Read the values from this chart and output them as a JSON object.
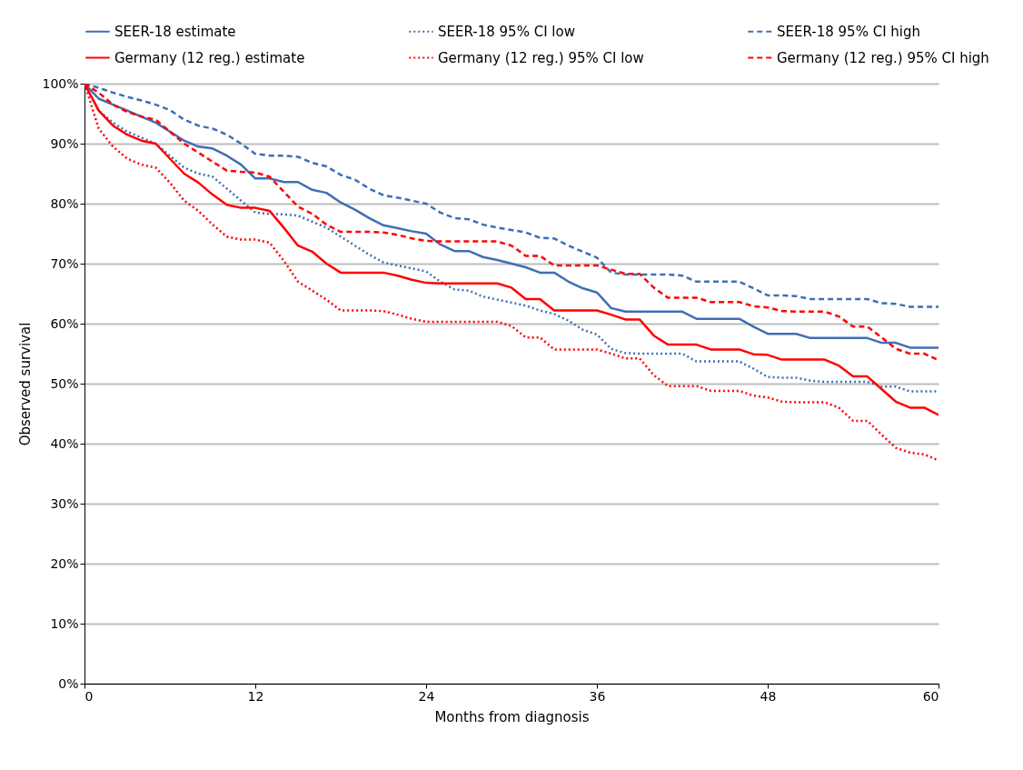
{
  "chart_data": {
    "type": "line",
    "xlabel": "Months from diagnosis",
    "ylabel": "Observed survival",
    "xlim": [
      0,
      60
    ],
    "xticks": [
      0,
      12,
      24,
      36,
      48,
      60
    ],
    "ylim": [
      0,
      100
    ],
    "yticks": [
      {
        "value": 0,
        "label": "0%"
      },
      {
        "value": 10,
        "label": "10%"
      },
      {
        "value": 20,
        "label": "20%"
      },
      {
        "value": 30,
        "label": "30%"
      },
      {
        "value": 40,
        "label": "40%"
      },
      {
        "value": 50,
        "label": "50%"
      },
      {
        "value": 60,
        "label": "60%"
      },
      {
        "value": 70,
        "label": "70%"
      },
      {
        "value": 80,
        "label": "80%"
      },
      {
        "value": 90,
        "label": "90%"
      },
      {
        "value": 100,
        "label": "100%"
      }
    ],
    "grid": "y",
    "legend": "top",
    "x": [
      0,
      1,
      2,
      3,
      4,
      5,
      6,
      7,
      8,
      9,
      10,
      11,
      12,
      13,
      14,
      15,
      16,
      17,
      18,
      19,
      20,
      21,
      22,
      23,
      24,
      25,
      26,
      27,
      28,
      29,
      30,
      31,
      32,
      33,
      34,
      35,
      36,
      37,
      38,
      39,
      40,
      41,
      42,
      43,
      44,
      45,
      46,
      47,
      48,
      49,
      50,
      51,
      52,
      53,
      54,
      55,
      56,
      57,
      58,
      59,
      60
    ],
    "series": [
      {
        "name": "SEER-18 estimate",
        "color": "#3f6fb5",
        "line_style": "solid",
        "values": [
          100,
          97.5,
          96.5,
          95.5,
          94.5,
          93.5,
          92,
          90.5,
          89.5,
          89.2,
          88,
          86.5,
          84.2,
          84.2,
          83.6,
          83.6,
          82.3,
          81.8,
          80.2,
          79,
          77.6,
          76.4,
          75.9,
          75.4,
          75,
          73.2,
          72.1,
          72.1,
          71.1,
          70.6,
          70,
          69.4,
          68.5,
          68.5,
          67,
          65.9,
          65.2,
          62.6,
          62,
          62,
          62,
          62,
          62,
          60.8,
          60.8,
          60.8,
          60.8,
          59.5,
          58.3,
          58.3,
          58.3,
          57.6,
          57.6,
          57.6,
          57.6,
          57.6,
          56.8,
          56.8,
          56,
          56,
          56
        ]
      },
      {
        "name": "SEER-18 95% CI low",
        "color": "#3f6fb5",
        "line_style": "dotted",
        "values": [
          100,
          95.5,
          93.5,
          92,
          91,
          90,
          88,
          86,
          85,
          84.5,
          82.5,
          80.5,
          78.5,
          78.3,
          78.2,
          78,
          77,
          76,
          74.5,
          73,
          71.5,
          70.2,
          69.7,
          69.2,
          68.7,
          67,
          65.7,
          65.5,
          64.5,
          64,
          63.5,
          63,
          62.2,
          61.6,
          60.5,
          59,
          58.2,
          55.8,
          55.1,
          55,
          55,
          55,
          55,
          53.7,
          53.7,
          53.7,
          53.7,
          52.5,
          51.1,
          51,
          51,
          50.5,
          50.3,
          50.3,
          50.3,
          50.3,
          49.5,
          49.5,
          48.7,
          48.7,
          48.7
        ]
      },
      {
        "name": "SEER-18 95% CI high",
        "color": "#3f6fb5",
        "line_style": "dashed",
        "values": [
          100,
          99.3,
          98.5,
          97.8,
          97.2,
          96.5,
          95.6,
          94,
          93,
          92.5,
          91.5,
          90,
          88.3,
          88,
          88,
          87.8,
          86.8,
          86.2,
          84.8,
          84,
          82.5,
          81.4,
          81,
          80.5,
          80,
          78.5,
          77.6,
          77.4,
          76.5,
          76,
          75.6,
          75.2,
          74.3,
          74.2,
          73,
          72,
          71,
          68.5,
          68.2,
          68.2,
          68.2,
          68.2,
          68,
          67,
          67,
          67,
          67,
          65.9,
          64.7,
          64.7,
          64.6,
          64.1,
          64.1,
          64.1,
          64.1,
          64.1,
          63.4,
          63.3,
          62.8,
          62.8,
          62.8
        ]
      },
      {
        "name": "Germany (12 reg.) estimate",
        "color": "#ff0000",
        "line_style": "solid",
        "values": [
          100,
          95.5,
          93,
          91.5,
          90.5,
          90,
          87.5,
          85,
          83.5,
          81.5,
          79.8,
          79.3,
          79.3,
          78.8,
          76,
          73,
          72,
          70,
          68.5,
          68.5,
          68.5,
          68.5,
          68,
          67.3,
          66.8,
          66.7,
          66.7,
          66.7,
          66.7,
          66.7,
          66,
          64.1,
          64.1,
          62.2,
          62.2,
          62.2,
          62.2,
          61.5,
          60.7,
          60.7,
          58,
          56.5,
          56.5,
          56.5,
          55.7,
          55.7,
          55.7,
          54.9,
          54.8,
          54,
          54,
          54,
          54,
          53,
          51.2,
          51.2,
          49.1,
          47,
          46,
          46,
          44.8
        ]
      },
      {
        "name": "Germany (12 reg.) 95% CI low",
        "color": "#ff0000",
        "line_style": "dotted",
        "values": [
          100,
          92.5,
          89.5,
          87.5,
          86.5,
          86,
          83.5,
          80.5,
          78.8,
          76.5,
          74.5,
          74,
          74,
          73.5,
          70.5,
          67,
          65.5,
          64,
          62.2,
          62.2,
          62.2,
          62.1,
          61.5,
          60.8,
          60.3,
          60.3,
          60.3,
          60.3,
          60.3,
          60.3,
          59.6,
          57.7,
          57.7,
          55.7,
          55.7,
          55.7,
          55.7,
          55,
          54.2,
          54.2,
          51.4,
          49.6,
          49.6,
          49.6,
          48.8,
          48.8,
          48.8,
          48,
          47.7,
          47,
          46.9,
          46.9,
          46.9,
          46,
          43.8,
          43.8,
          41.5,
          39.3,
          38.5,
          38.2,
          37.2
        ]
      },
      {
        "name": "Germany (12 reg.) 95% CI high",
        "color": "#ff0000",
        "line_style": "dashed",
        "values": [
          100,
          98.5,
          96.5,
          95.3,
          94.5,
          94,
          92,
          90,
          88.5,
          87,
          85.5,
          85.3,
          85.2,
          84.5,
          82,
          79.5,
          78.3,
          76.5,
          75.3,
          75.3,
          75.3,
          75.2,
          74.8,
          74.2,
          73.8,
          73.7,
          73.7,
          73.7,
          73.7,
          73.7,
          73,
          71.3,
          71.3,
          69.7,
          69.7,
          69.7,
          69.7,
          69,
          68.3,
          68.3,
          66,
          64.3,
          64.3,
          64.3,
          63.6,
          63.6,
          63.6,
          62.9,
          62.7,
          62.1,
          62,
          62,
          62,
          61.2,
          59.5,
          59.5,
          57.7,
          55.8,
          55,
          55,
          53.9
        ]
      }
    ]
  }
}
